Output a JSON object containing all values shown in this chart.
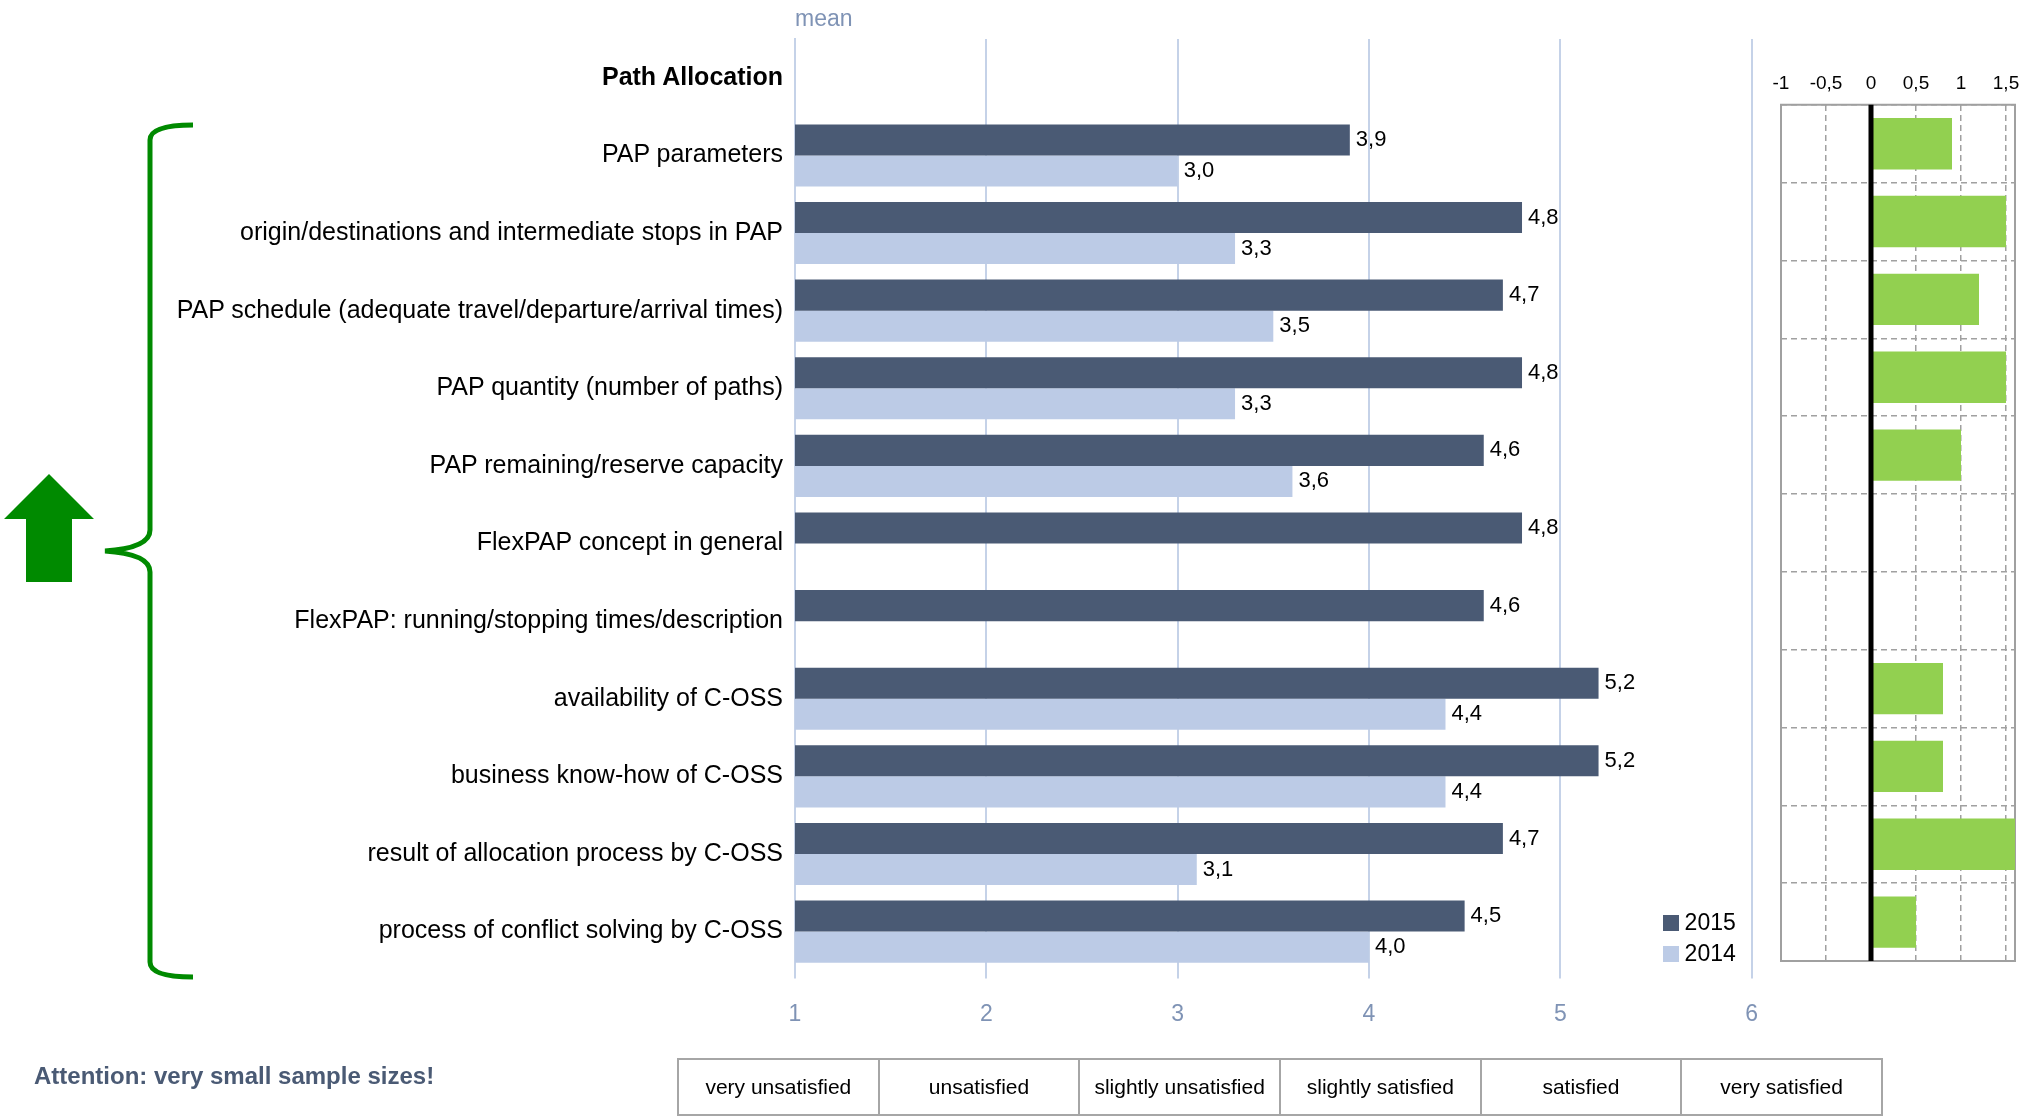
{
  "chart_data": [
    {
      "type": "bar",
      "orientation": "horizontal",
      "xlabel": "mean",
      "categories": [
        "Path Allocation",
        "PAP parameters",
        "origin/destinations and intermediate stops in PAP",
        "PAP schedule (adequate travel/departure/arrival times)",
        "PAP quantity (number of paths)",
        "PAP remaining/reserve capacity",
        "FlexPAP concept in general",
        "FlexPAP: running/stopping times/description",
        "availability of C-OSS",
        "business know-how of C-OSS",
        "result of allocation process by C-OSS",
        "process of conflict solving by C-OSS"
      ],
      "series": [
        {
          "name": "2015",
          "color": "#4a5a74",
          "values": [
            null,
            3.9,
            4.8,
            4.7,
            4.8,
            4.6,
            4.8,
            4.6,
            5.2,
            5.2,
            4.7,
            4.5
          ],
          "value_labels": [
            null,
            "3,9",
            "4,8",
            "4,7",
            "4,8",
            "4,6",
            "4,8",
            "4,6",
            "5,2",
            "5,2",
            "4,7",
            "4,5"
          ]
        },
        {
          "name": "2014",
          "color": "#bccbe6",
          "values": [
            null,
            3.0,
            3.3,
            3.5,
            3.3,
            3.6,
            null,
            null,
            4.4,
            4.4,
            3.1,
            4.0
          ],
          "value_labels": [
            null,
            "3,0",
            "3,3",
            "3,5",
            "3,3",
            "3,6",
            null,
            null,
            "4,4",
            "4,4",
            "3,1",
            "4,0"
          ]
        }
      ],
      "xlim": [
        1,
        6
      ],
      "xticks": [
        1,
        2,
        3,
        4,
        5,
        6
      ],
      "grid": "x",
      "legend": "bottom right",
      "annotations": [
        "very unsatisfied",
        "unsatisfied",
        "slightly unsatisfied",
        "slightly satisfied",
        "satisfied",
        "very satisfied",
        "Attention: very small sample sizes!"
      ]
    },
    {
      "type": "bar",
      "orientation": "horizontal",
      "categories": [
        null,
        null,
        null,
        null,
        null,
        null,
        null,
        null,
        null,
        null,
        null
      ],
      "series": [
        {
          "color": "#92d050",
          "values": [
            0.9,
            1.5,
            1.2,
            1.5,
            1.0,
            null,
            null,
            0.8,
            0.8,
            1.6,
            0.5
          ]
        }
      ],
      "xlim": [
        -1,
        1.6
      ],
      "xticks": [
        -1,
        {
          "value": -0.5,
          "label": "-0,5"
        },
        0,
        {
          "value": 0.5,
          "label": "0,5"
        },
        1,
        {
          "value": 1.5,
          "label": "1,5"
        }
      ],
      "grid": true,
      "tick_labels": "x",
      "ref_lines": [
        {
          "axis": "x",
          "value": 0,
          "color": "#000000"
        }
      ]
    }
  ]
}
